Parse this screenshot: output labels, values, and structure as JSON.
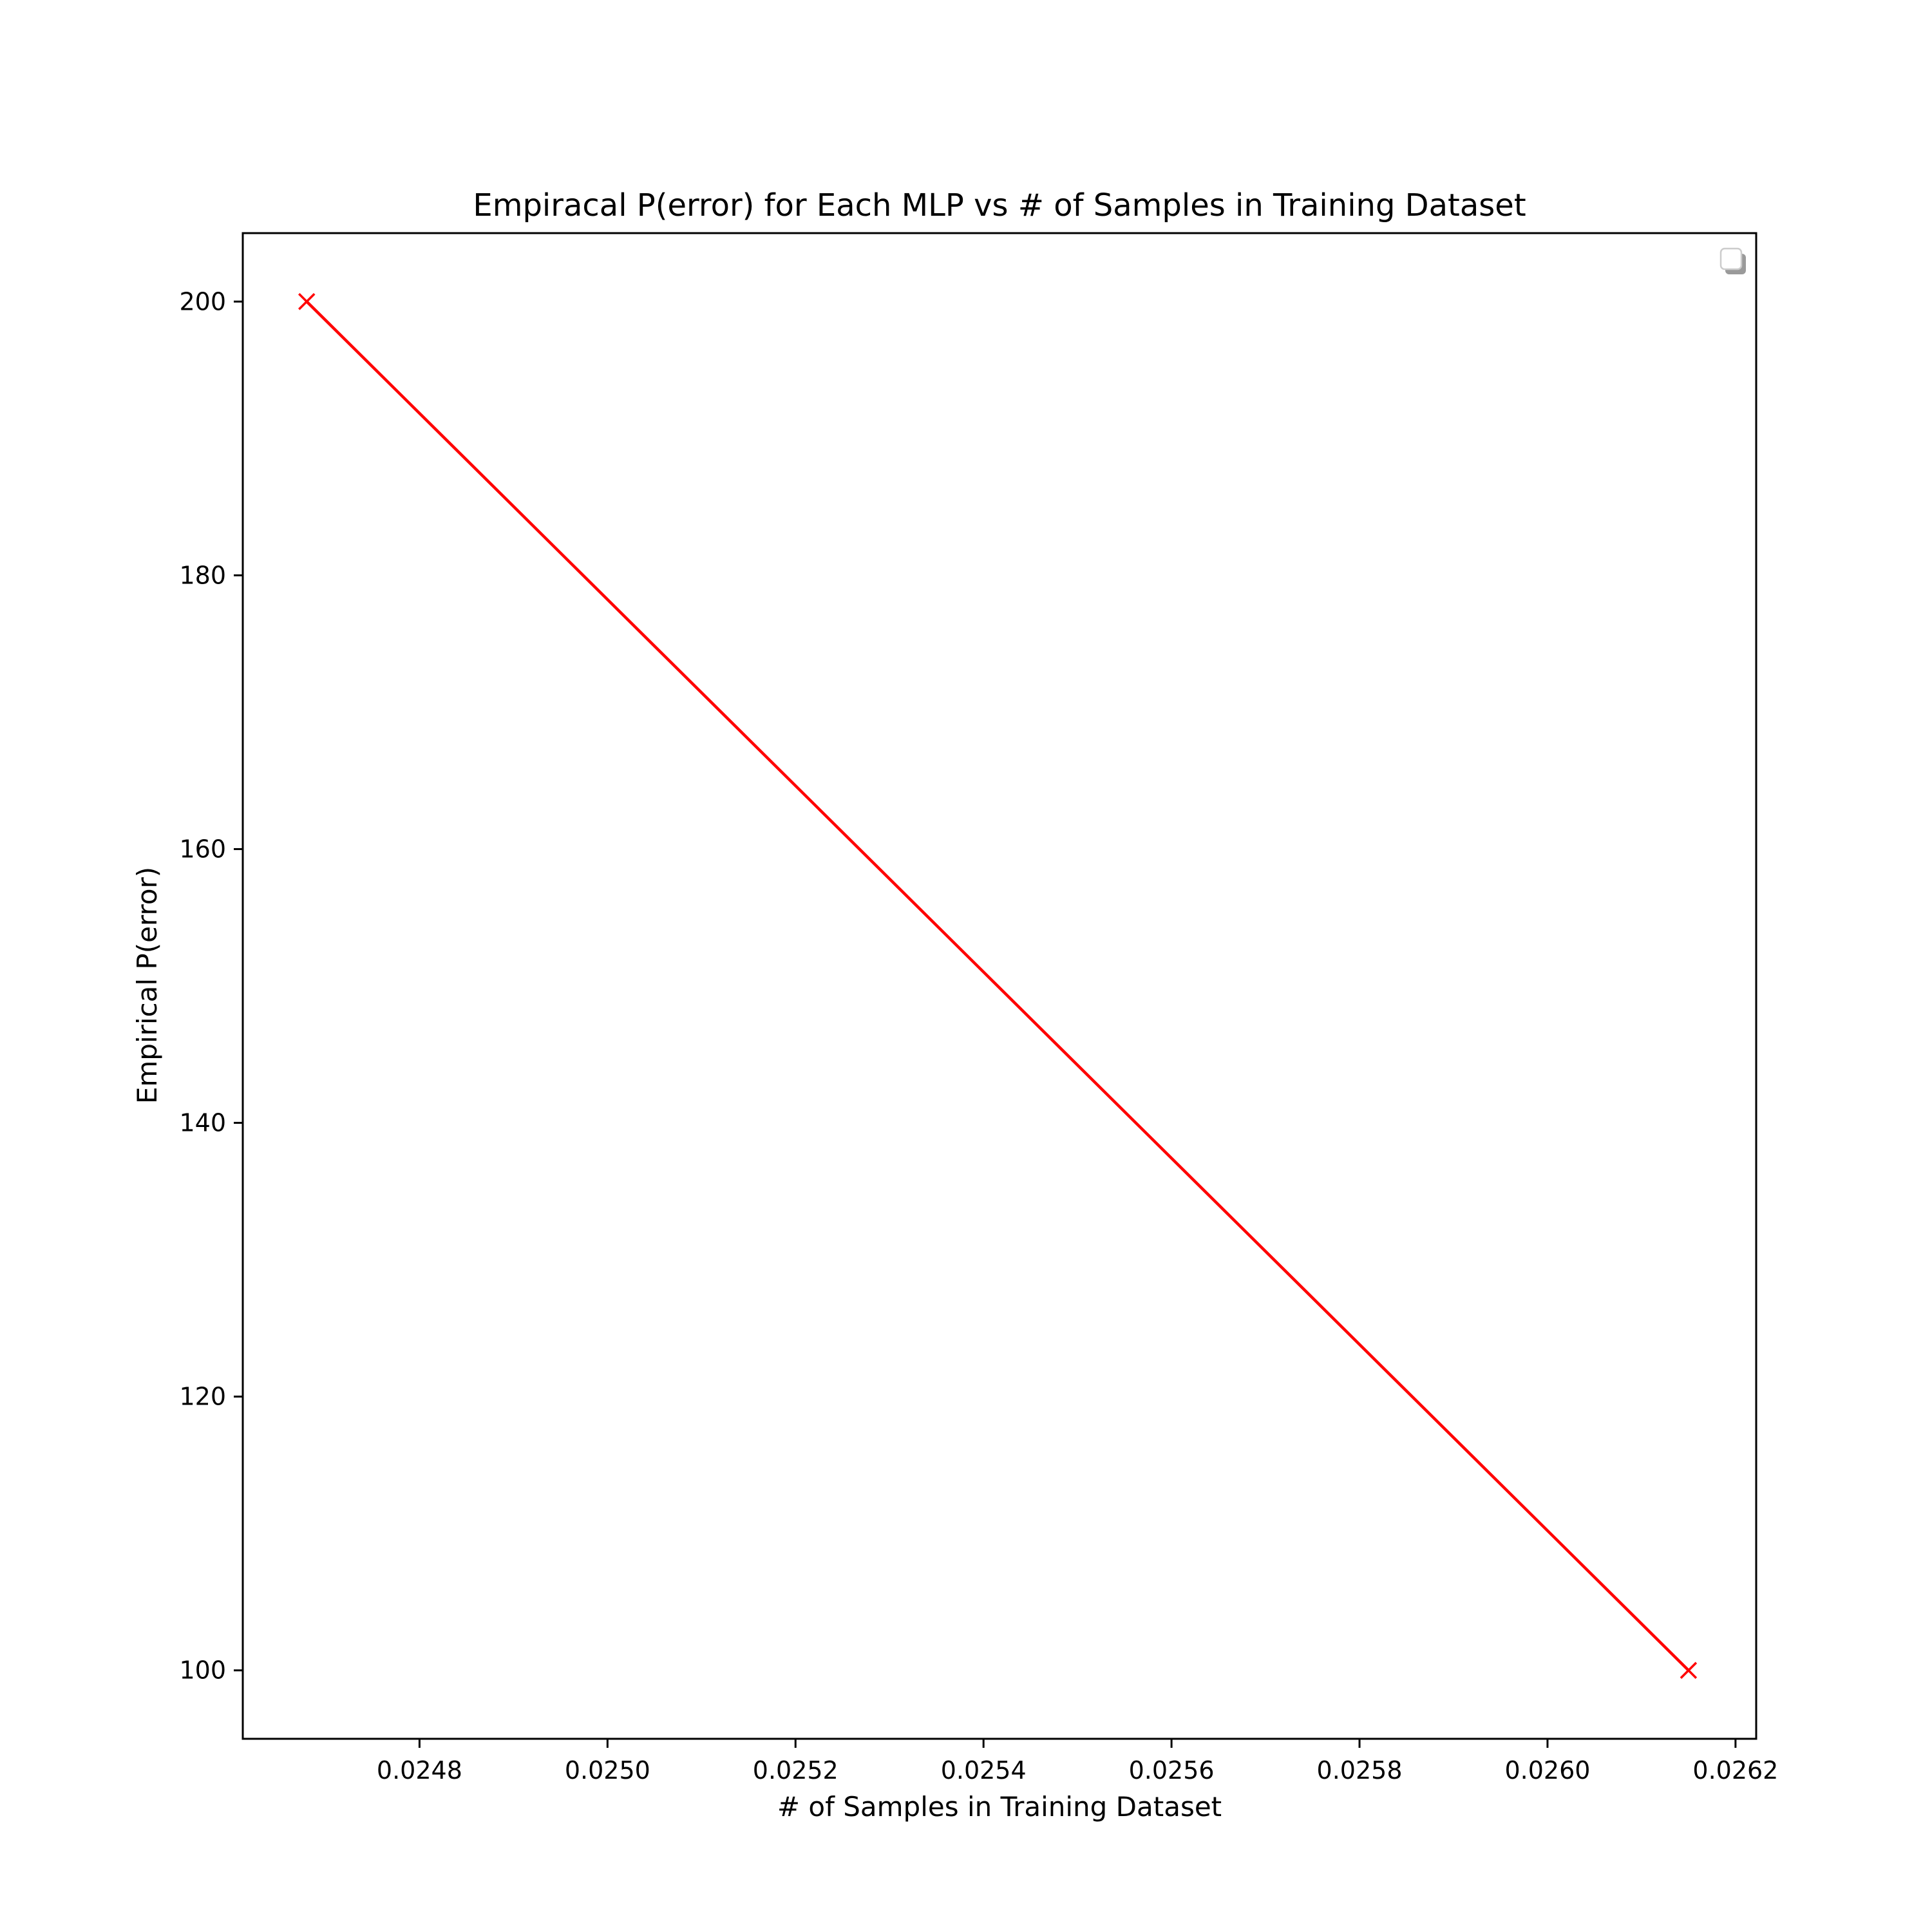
{
  "chart_data": {
    "type": "line",
    "title": "Empiracal P(error) for Each MLP vs # of Samples in Training Dataset",
    "xlabel": "# of Samples in Training Dataset",
    "ylabel": "Empirical P(error)",
    "xlim": [
      0.024612,
      0.026222
    ],
    "ylim": [
      95,
      205
    ],
    "x_ticks": [
      "0.0248",
      "0.0250",
      "0.0252",
      "0.0254",
      "0.0256",
      "0.0258",
      "0.0260",
      "0.0262"
    ],
    "y_ticks": [
      "100",
      "120",
      "140",
      "160",
      "180",
      "200"
    ],
    "grid": false,
    "legend": {
      "placement": "top-right",
      "entries": []
    },
    "series": [
      {
        "marker": "x",
        "color": "#ff0000",
        "x": [
          0.02468,
          0.02615
        ],
        "y": [
          200,
          100
        ]
      }
    ]
  }
}
